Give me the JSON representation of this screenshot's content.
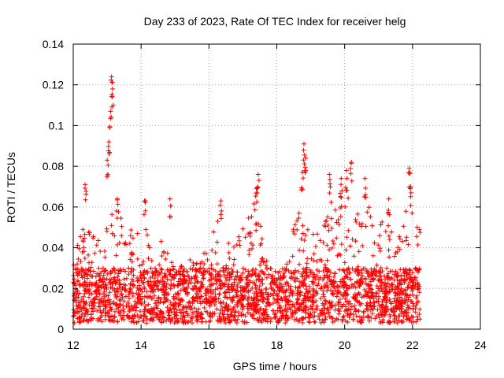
{
  "chart_data": {
    "type": "scatter",
    "title": "Day 233 of 2023, Rate Of TEC Index for receiver helg",
    "xlabel": "GPS time / hours",
    "ylabel": "ROTI / TECUs",
    "xlim": [
      12,
      24
    ],
    "ylim": [
      0,
      0.14
    ],
    "xticks": [
      "12",
      "14",
      "16",
      "18",
      "20",
      "22",
      "24"
    ],
    "yticks": [
      "0",
      "0.02",
      "0.04",
      "0.06",
      "0.08",
      "0.1",
      "0.12",
      "0.14"
    ],
    "grid": true,
    "marker": "+",
    "color": "#ff0000",
    "data_extent_hours": [
      12.0,
      22.25
    ],
    "baseline_range": [
      0.003,
      0.03
    ],
    "envelope": [
      {
        "x": 12.0,
        "y": 0.035
      },
      {
        "x": 12.3,
        "y": 0.05
      },
      {
        "x": 12.5,
        "y": 0.048
      },
      {
        "x": 12.8,
        "y": 0.045
      },
      {
        "x": 13.0,
        "y": 0.05
      },
      {
        "x": 13.3,
        "y": 0.065
      },
      {
        "x": 13.6,
        "y": 0.045
      },
      {
        "x": 14.0,
        "y": 0.06
      },
      {
        "x": 14.3,
        "y": 0.04
      },
      {
        "x": 14.6,
        "y": 0.045
      },
      {
        "x": 15.0,
        "y": 0.03
      },
      {
        "x": 15.5,
        "y": 0.035
      },
      {
        "x": 16.0,
        "y": 0.04
      },
      {
        "x": 16.3,
        "y": 0.06
      },
      {
        "x": 16.6,
        "y": 0.045
      },
      {
        "x": 17.0,
        "y": 0.05
      },
      {
        "x": 17.4,
        "y": 0.07
      },
      {
        "x": 17.7,
        "y": 0.035
      },
      {
        "x": 18.0,
        "y": 0.025
      },
      {
        "x": 18.3,
        "y": 0.035
      },
      {
        "x": 18.6,
        "y": 0.06
      },
      {
        "x": 19.0,
        "y": 0.05
      },
      {
        "x": 19.3,
        "y": 0.045
      },
      {
        "x": 19.6,
        "y": 0.065
      },
      {
        "x": 20.0,
        "y": 0.07
      },
      {
        "x": 20.3,
        "y": 0.06
      },
      {
        "x": 20.6,
        "y": 0.065
      },
      {
        "x": 21.0,
        "y": 0.05
      },
      {
        "x": 21.3,
        "y": 0.06
      },
      {
        "x": 21.6,
        "y": 0.05
      },
      {
        "x": 21.9,
        "y": 0.065
      },
      {
        "x": 22.2,
        "y": 0.05
      }
    ],
    "peaks": [
      {
        "x": 12.35,
        "y": 0.071
      },
      {
        "x": 13.0,
        "y": 0.083
      },
      {
        "x": 13.05,
        "y": 0.092
      },
      {
        "x": 13.1,
        "y": 0.107
      },
      {
        "x": 13.13,
        "y": 0.124
      },
      {
        "x": 13.16,
        "y": 0.118
      },
      {
        "x": 13.3,
        "y": 0.064
      },
      {
        "x": 14.1,
        "y": 0.063
      },
      {
        "x": 14.85,
        "y": 0.064
      },
      {
        "x": 16.35,
        "y": 0.063
      },
      {
        "x": 17.45,
        "y": 0.076
      },
      {
        "x": 17.4,
        "y": 0.069
      },
      {
        "x": 18.8,
        "y": 0.091
      },
      {
        "x": 18.85,
        "y": 0.084
      },
      {
        "x": 18.75,
        "y": 0.077
      },
      {
        "x": 19.55,
        "y": 0.076
      },
      {
        "x": 19.9,
        "y": 0.074
      },
      {
        "x": 20.05,
        "y": 0.078
      },
      {
        "x": 20.2,
        "y": 0.082
      },
      {
        "x": 20.6,
        "y": 0.074
      },
      {
        "x": 21.3,
        "y": 0.064
      },
      {
        "x": 21.9,
        "y": 0.079
      },
      {
        "x": 21.95,
        "y": 0.07
      }
    ]
  }
}
